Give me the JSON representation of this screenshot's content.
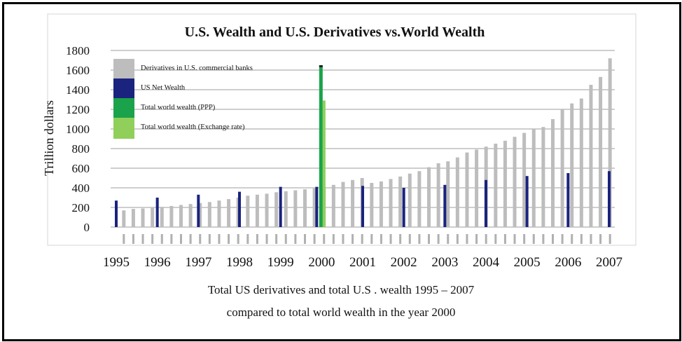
{
  "chart_data": {
    "type": "bar",
    "title": "U.S. Wealth and U.S. Derivatives vs.World Wealth",
    "ylabel": "Trillion dollars",
    "ylim": [
      0,
      1800
    ],
    "yticks": [
      "0",
      "200",
      "400",
      "600",
      "800",
      "1000",
      "1200",
      "1400",
      "1600",
      "1800"
    ],
    "grid": true,
    "legend_placement": "top-left",
    "x_year_labels": [
      "1995",
      "1996",
      "1997",
      "1998",
      "1999",
      "2000",
      "2001",
      "2002",
      "2003",
      "2004",
      "2005",
      "2006",
      "2007"
    ],
    "series": [
      {
        "name": "Derivatives in U.S. commercial banks",
        "color": "#bdbdbd",
        "values": [
          170,
          185,
          190,
          195,
          205,
          215,
          225,
          235,
          245,
          255,
          270,
          285,
          300,
          320,
          330,
          340,
          355,
          365,
          375,
          385,
          395,
          410,
          430,
          460,
          480,
          500,
          450,
          465,
          490,
          515,
          545,
          570,
          610,
          650,
          670,
          710,
          760,
          790,
          820,
          850,
          880,
          920,
          960,
          1000,
          1020,
          1100,
          1200,
          1260,
          1310,
          1450,
          1530,
          1720
        ]
      },
      {
        "name": "US Net Wealth",
        "color": "#1a237e",
        "points": [
          {
            "year": "1995",
            "value": 270
          },
          {
            "year": "1996",
            "value": 300
          },
          {
            "year": "1997",
            "value": 330
          },
          {
            "year": "1998",
            "value": 360
          },
          {
            "year": "1999",
            "value": 410
          },
          {
            "year": "2000",
            "value": 410
          },
          {
            "year": "2001",
            "value": 420
          },
          {
            "year": "2002",
            "value": 400
          },
          {
            "year": "2003",
            "value": 430
          },
          {
            "year": "2004",
            "value": 480
          },
          {
            "year": "2005",
            "value": 520
          },
          {
            "year": "2006",
            "value": 550
          },
          {
            "year": "2007",
            "value": 570
          }
        ]
      },
      {
        "name": "Total world wealth (PPP)",
        "color": "#1aa34a",
        "points": [
          {
            "year": "2000",
            "value": 1650
          }
        ]
      },
      {
        "name": "Total world wealth (Exchange rate)",
        "color": "#8fcf5a",
        "points": [
          {
            "year": "2000",
            "value": 1290
          }
        ]
      }
    ]
  },
  "caption": {
    "line1": "Total US derivatives and total U.S . wealth 1995 – 2007",
    "line2": "compared to total world wealth in the year 2000"
  }
}
